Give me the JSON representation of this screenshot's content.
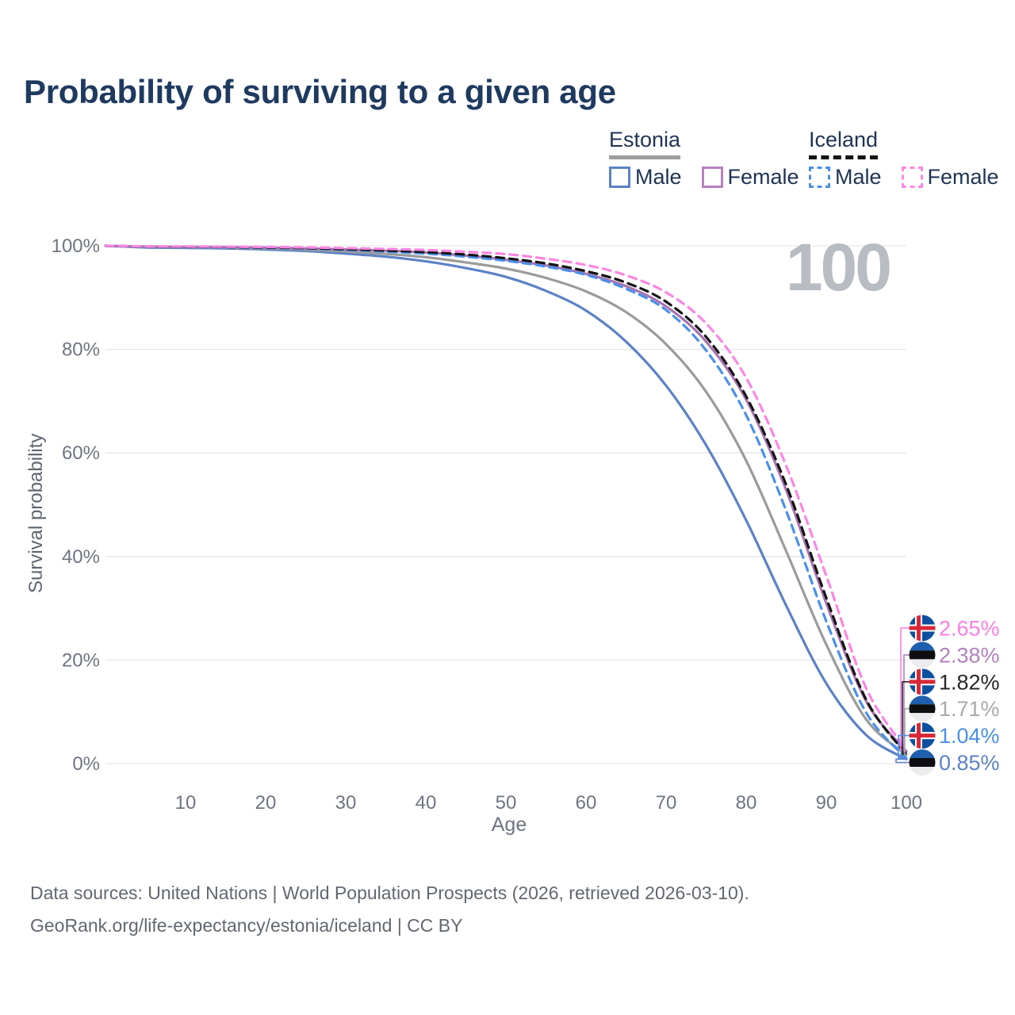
{
  "page": {
    "title": "Probability of surviving to a given age",
    "footer_line1": "Data sources: United Nations | World Population Prospects (2026, retrieved 2026-03-10).",
    "footer_line2": "GeoRank.org/life-expectancy/estonia/iceland | CC BY"
  },
  "legend": {
    "groups": [
      {
        "label": "Estonia",
        "line_style": "solid",
        "underline_color": "#9e9e9e",
        "items": [
          {
            "label": "Male",
            "color": "#5b82c6"
          },
          {
            "label": "Female",
            "color": "#b87fc0"
          }
        ]
      },
      {
        "label": "Iceland",
        "line_style": "dashed",
        "underline_color": "#141414",
        "items": [
          {
            "label": "Male",
            "color": "#4a90ea"
          },
          {
            "label": "Female",
            "color": "#fb86e3"
          }
        ]
      }
    ]
  },
  "chart_data": {
    "type": "line",
    "title": "Probability of surviving to a given age",
    "xlabel": "Age",
    "ylabel": "Survival probability",
    "xlim": [
      0,
      100
    ],
    "ylim": [
      0,
      100
    ],
    "grid": "horizontal",
    "age_counter": "100",
    "x_ticks": [
      10,
      20,
      30,
      40,
      50,
      60,
      70,
      80,
      90,
      100
    ],
    "y_ticks": [
      {
        "value": 0,
        "label": "0%"
      },
      {
        "value": 20,
        "label": "20%"
      },
      {
        "value": 40,
        "label": "40%"
      },
      {
        "value": 60,
        "label": "60%"
      },
      {
        "value": 80,
        "label": "80%"
      },
      {
        "value": 100,
        "label": "100%"
      }
    ],
    "x": [
      0,
      5,
      10,
      15,
      20,
      25,
      30,
      35,
      40,
      45,
      50,
      55,
      60,
      65,
      70,
      75,
      80,
      85,
      90,
      95,
      100
    ],
    "series": [
      {
        "name": "Estonia Male",
        "country": "Estonia",
        "sex": "Male",
        "color": "#5b82c6",
        "label_color": "#5b82c6",
        "dash": false,
        "flag": "estonia",
        "end_label": "0.85%",
        "values": [
          100,
          99.7,
          99.6,
          99.5,
          99.3,
          99.0,
          98.5,
          97.9,
          97.0,
          95.7,
          94.0,
          91.3,
          87.5,
          81.5,
          73.0,
          61.5,
          47.0,
          30.5,
          15.5,
          5.5,
          0.85
        ]
      },
      {
        "name": "Estonia",
        "country": "Estonia",
        "sex": "Both",
        "color": "#9b9b9b",
        "label_color": "#a7a9ac",
        "dash": false,
        "flag": "estonia",
        "end_label": "1.71%",
        "values": [
          100,
          99.8,
          99.75,
          99.65,
          99.5,
          99.25,
          98.9,
          98.45,
          97.8,
          96.8,
          95.6,
          93.8,
          91.2,
          87.2,
          81.0,
          71.8,
          58.5,
          41.0,
          23.0,
          8.5,
          1.71
        ]
      },
      {
        "name": "Estonia Female",
        "country": "Estonia",
        "sex": "Female",
        "color": "#a873b2",
        "label_color": "#b381bf",
        "dash": false,
        "flag": "estonia",
        "end_label": "2.38%",
        "values": [
          100,
          99.85,
          99.8,
          99.75,
          99.65,
          99.5,
          99.3,
          99.05,
          98.7,
          98.1,
          97.3,
          96.2,
          94.6,
          92.2,
          88.3,
          81.5,
          70.3,
          52.8,
          31.0,
          12.0,
          2.38
        ]
      },
      {
        "name": "Iceland Male",
        "country": "Iceland",
        "sex": "Male",
        "color": "#4a90ea",
        "label_color": "#4a90ea",
        "dash": true,
        "flag": "iceland",
        "end_label": "1.04%",
        "values": [
          100,
          99.85,
          99.8,
          99.7,
          99.6,
          99.45,
          99.2,
          98.9,
          98.5,
          97.9,
          97.1,
          96.0,
          94.4,
          91.7,
          87.6,
          79.8,
          67.3,
          48.8,
          27.5,
          9.8,
          1.04
        ]
      },
      {
        "name": "Iceland",
        "country": "Iceland",
        "sex": "Both",
        "color": "#141414",
        "label_color": "#26272b",
        "dash": true,
        "flag": "iceland",
        "end_label": "1.82%",
        "values": [
          100,
          99.87,
          99.83,
          99.77,
          99.68,
          99.55,
          99.35,
          99.1,
          98.8,
          98.3,
          97.6,
          96.6,
          95.1,
          92.9,
          89.2,
          82.4,
          70.9,
          53.8,
          32.0,
          12.3,
          1.82
        ]
      },
      {
        "name": "Iceland Female",
        "country": "Iceland",
        "sex": "Female",
        "color": "#fb86e3",
        "label_color": "#fc7ee1",
        "dash": true,
        "flag": "iceland",
        "end_label": "2.65%",
        "values": [
          100,
          99.9,
          99.87,
          99.83,
          99.78,
          99.68,
          99.55,
          99.4,
          99.2,
          98.85,
          98.4,
          97.5,
          96.3,
          94.3,
          91.0,
          85.0,
          74.5,
          57.5,
          36.3,
          14.5,
          2.65
        ]
      }
    ]
  }
}
